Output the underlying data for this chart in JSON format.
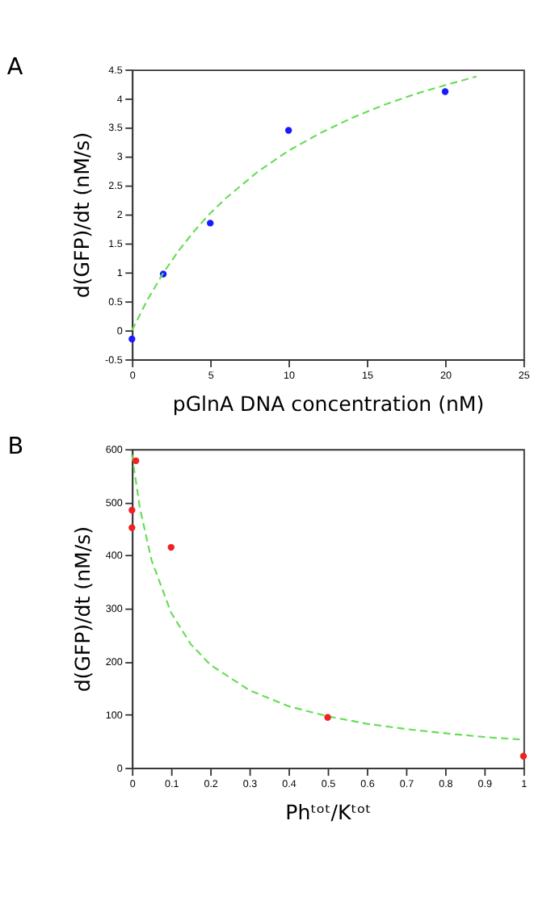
{
  "chart_data": [
    {
      "type": "scatter",
      "title": "A",
      "xlabel": "pGlnA DNA concentration (nM)",
      "ylabel": "d(GFP)/dt (nM/s)",
      "xlim": [
        0,
        25
      ],
      "ylim": [
        -0.5,
        4.5
      ],
      "xticks": [
        0,
        5,
        10,
        15,
        20,
        25
      ],
      "yticks": [
        -0.5,
        0,
        0.5,
        1,
        1.5,
        2,
        2.5,
        3,
        3.5,
        4,
        4.5
      ],
      "grid": false,
      "series": [
        {
          "type": "scatter",
          "color": "#1a1aff",
          "marker": "circle",
          "x": [
            0,
            2,
            5,
            10,
            20
          ],
          "values": [
            -0.15,
            0.97,
            1.85,
            3.45,
            4.12
          ]
        },
        {
          "type": "line",
          "color": "#66dd55",
          "line_style": "dashed",
          "marker": "none",
          "x": [
            0,
            1,
            2,
            3,
            4,
            5,
            6,
            8,
            10,
            12,
            14,
            16,
            18,
            20,
            22
          ],
          "values": [
            0,
            0.53,
            0.99,
            1.38,
            1.72,
            2.02,
            2.28,
            2.73,
            3.1,
            3.4,
            3.66,
            3.88,
            4.07,
            4.23,
            4.38
          ]
        }
      ]
    },
    {
      "type": "scatter",
      "title": "B",
      "xlabel": "Phᵗᵒᵗ/Kᵗᵒᵗ",
      "ylabel": "d(GFP)/dt (nM/s)",
      "xlim": [
        0,
        1
      ],
      "ylim": [
        0,
        600
      ],
      "xticks": [
        0,
        0.1,
        0.2,
        0.3,
        0.4,
        0.5,
        0.6,
        0.7,
        0.8,
        0.9,
        1
      ],
      "yticks": [
        0,
        100,
        200,
        300,
        400,
        500,
        600
      ],
      "grid": false,
      "series": [
        {
          "type": "line",
          "color": "#66dd55",
          "line_style": "dashed",
          "marker": "none",
          "x": [
            0,
            0.02,
            0.05,
            0.1,
            0.15,
            0.2,
            0.3,
            0.4,
            0.5,
            0.6,
            0.7,
            0.8,
            0.9,
            1
          ],
          "values": [
            590,
            490,
            391,
            292,
            233,
            194,
            146,
            116,
            97,
            83,
            73,
            65,
            58,
            53
          ]
        },
        {
          "type": "scatter",
          "color": "#ee2222",
          "marker": "circle",
          "x": [
            0,
            0,
            0.01,
            0.1,
            0.5,
            1
          ],
          "values": [
            452,
            485,
            578,
            415,
            95,
            22
          ]
        }
      ]
    }
  ]
}
